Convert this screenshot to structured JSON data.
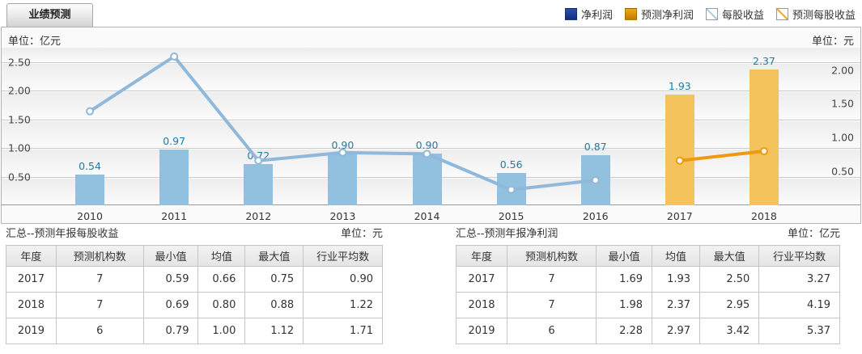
{
  "tab": {
    "label": "业绩预测"
  },
  "legend": [
    {
      "label": "净利润",
      "swatch": "solid",
      "color1": "#2a50a8",
      "color2": "#132e7e"
    },
    {
      "label": "预测净利润",
      "swatch": "solid",
      "color1": "#f2a912",
      "color2": "#c07c00"
    },
    {
      "label": "每股收益",
      "swatch": "hatch",
      "color1": "#a9c7e2",
      "color2": "#a9c7e2"
    },
    {
      "label": "预测每股收益",
      "swatch": "hatch",
      "color1": "#f0a01e",
      "color2": "#f0a01e"
    }
  ],
  "chart": {
    "left_unit": "单位：亿元",
    "right_unit": "单位：元",
    "value_label_color": "#1d7ba8"
  },
  "chart_data": {
    "type": "bar+line",
    "categories": [
      "2010",
      "2011",
      "2012",
      "2013",
      "2014",
      "2015",
      "2016",
      "2017",
      "2018"
    ],
    "series": [
      {
        "name": "净利润",
        "type": "bar",
        "axis": "left",
        "color": "#92c1e0",
        "values": [
          0.54,
          0.97,
          0.72,
          0.9,
          0.9,
          0.56,
          0.87,
          null,
          null
        ]
      },
      {
        "name": "预测净利润",
        "type": "bar",
        "axis": "left",
        "color": "#f5c35b",
        "values": [
          null,
          null,
          null,
          null,
          null,
          null,
          null,
          1.93,
          2.37
        ]
      },
      {
        "name": "每股收益",
        "type": "line",
        "axis": "right",
        "color": "#8fb8da",
        "values": [
          1.39,
          2.2,
          0.66,
          0.78,
          0.76,
          0.23,
          0.37,
          null,
          null
        ]
      },
      {
        "name": "预测每股收益",
        "type": "line",
        "axis": "right",
        "color": "#f0990f",
        "values": [
          null,
          null,
          null,
          null,
          null,
          null,
          null,
          0.66,
          0.8
        ]
      }
    ],
    "left_axis": {
      "unit": "亿元",
      "ticks": [
        0.5,
        1.0,
        1.5,
        2.0,
        2.5
      ],
      "max": 2.75,
      "grid": true
    },
    "right_axis": {
      "unit": "元",
      "ticks": [
        0.5,
        1.0,
        1.5,
        2.0
      ],
      "max": 2.33,
      "grid": false
    },
    "title": "业绩预测",
    "legend_position": "top-right",
    "bar_value_labels": [
      "0.54",
      "0.97",
      "0.72",
      "0.90",
      "0.90",
      "0.56",
      "0.87",
      "1.93",
      "2.37"
    ]
  },
  "tables": {
    "left": {
      "title": "汇总--预测年报每股收益",
      "unit": "单位：元",
      "columns": [
        "年度",
        "预测机构数",
        "最小值",
        "均值",
        "最大值",
        "行业平均数"
      ],
      "rows": [
        [
          "2017",
          "7",
          "0.59",
          "0.66",
          "0.75",
          "0.90"
        ],
        [
          "2018",
          "7",
          "0.69",
          "0.80",
          "0.88",
          "1.22"
        ],
        [
          "2019",
          "6",
          "0.79",
          "1.00",
          "1.12",
          "1.71"
        ]
      ]
    },
    "right": {
      "title": "汇总--预测年报净利润",
      "unit": "单位：亿元",
      "columns": [
        "年度",
        "预测机构数",
        "最小值",
        "均值",
        "最大值",
        "行业平均数"
      ],
      "rows": [
        [
          "2017",
          "7",
          "1.69",
          "1.93",
          "2.50",
          "3.27"
        ],
        [
          "2018",
          "7",
          "1.98",
          "2.37",
          "2.95",
          "4.19"
        ],
        [
          "2019",
          "6",
          "2.28",
          "2.97",
          "3.42",
          "5.37"
        ]
      ]
    }
  }
}
